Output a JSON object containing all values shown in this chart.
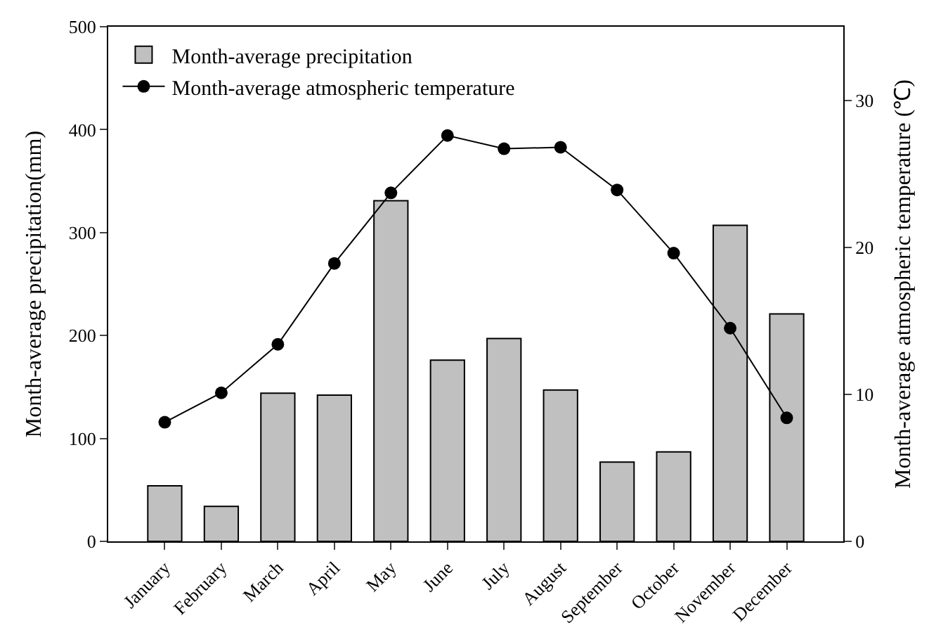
{
  "chart_data": {
    "type": "bar",
    "ylabel": "Month-average precipitation(mm)",
    "y2label": "Month-average atmospheric temperature (℃)",
    "categories": [
      "January",
      "February",
      "March",
      "April",
      "May",
      "June",
      "July",
      "August",
      "September",
      "October",
      "November",
      "December"
    ],
    "series": [
      {
        "name": "Month-average precipitation",
        "color": "#c0c0c0",
        "values": [
          54,
          34,
          144,
          142,
          331,
          176,
          197,
          147,
          77,
          87,
          307,
          221
        ]
      },
      {
        "name": "Month-average atmospheric temperature",
        "type": "line",
        "axis": "y2",
        "color": "#000000",
        "marker": "circle",
        "values": [
          8.1,
          10.1,
          13.4,
          18.9,
          23.7,
          27.6,
          26.7,
          26.8,
          23.9,
          19.6,
          14.5,
          8.4
        ]
      }
    ],
    "ylim": [
      0,
      500
    ],
    "yticks": [
      0,
      100,
      200,
      300,
      400,
      500
    ],
    "y2lim": [
      0,
      35
    ],
    "y2ticks": [
      0,
      10,
      20,
      30
    ],
    "legend": "top left"
  }
}
